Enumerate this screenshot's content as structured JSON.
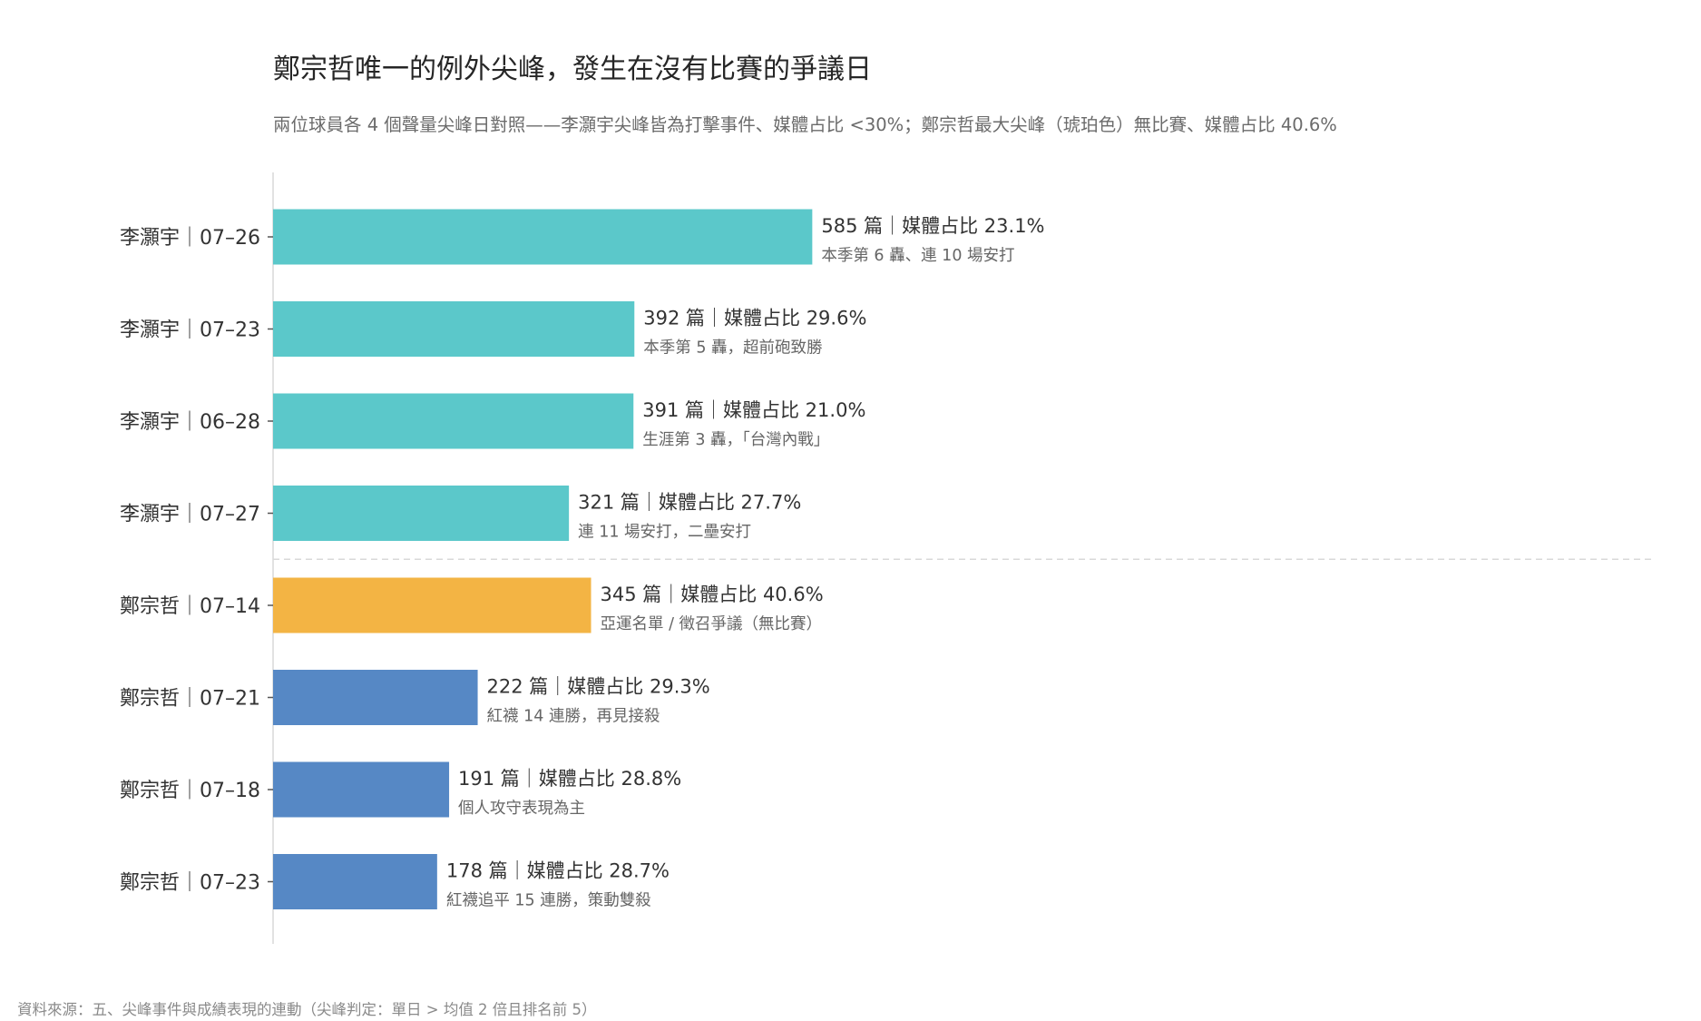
{
  "chart_data": {
    "type": "bar",
    "orientation": "horizontal",
    "title": "鄭宗哲唯一的例外尖峰，發生在沒有比賽的爭議日",
    "subtitle": "兩位球員各 4 個聲量尖峰日對照——李灝宇尖峰皆為打擊事件、媒體占比 <30%；鄭宗哲最大尖峰（琥珀色）無比賽、媒體占比 40.6%",
    "source": "資料來源：五、尖峰事件與成績表現的連動（尖峰判定：單日 > 均值 2 倍且排名前 5）",
    "xlim": [
      0,
      1500
    ],
    "grid": false,
    "categories": [
      "李灝宇｜07–26",
      "李灝宇｜07–23",
      "李灝宇｜06–28",
      "李灝宇｜07–27",
      "鄭宗哲｜07–14",
      "鄭宗哲｜07–21",
      "鄭宗哲｜07–18",
      "鄭宗哲｜07–23"
    ],
    "values": [
      585,
      392,
      391,
      321,
      345,
      222,
      191,
      178
    ],
    "value_labels": [
      "585 篇｜媒體占比 23.1%",
      "392 篇｜媒體占比 29.6%",
      "391 篇｜媒體占比 21.0%",
      "321 篇｜媒體占比 27.7%",
      "345 篇｜媒體占比 40.6%",
      "222 篇｜媒體占比 29.3%",
      "191 篇｜媒體占比 28.8%",
      "178 篇｜媒體占比 28.7%"
    ],
    "annotations": [
      "本季第 6 轟、連 10 場安打",
      "本季第 5 轟，超前砲致勝",
      "生涯第 3 轟，「台灣內戰」",
      "連 11 場安打，二壘安打",
      "亞運名單 / 徵召爭議（無比賽）",
      "紅襪 14 連勝，再見接殺",
      "個人攻守表現為主",
      "紅襪追平 15 連勝，策動雙殺"
    ],
    "media_share_percent": [
      23.1,
      29.6,
      21.0,
      27.7,
      40.6,
      29.3,
      28.8,
      28.7
    ],
    "bar_colors": [
      "#5BC8CA",
      "#5BC8CA",
      "#5BC8CA",
      "#5BC8CA",
      "#F3B444",
      "#5688C5",
      "#5688C5",
      "#5688C5"
    ],
    "colors": {
      "li": "#5BC8CA",
      "zheng": "#5688C5",
      "highlight": "#F3B444",
      "axis": "#d9d9d9",
      "separator": "#d9d9d9"
    },
    "group_separator_after_index": 3
  }
}
